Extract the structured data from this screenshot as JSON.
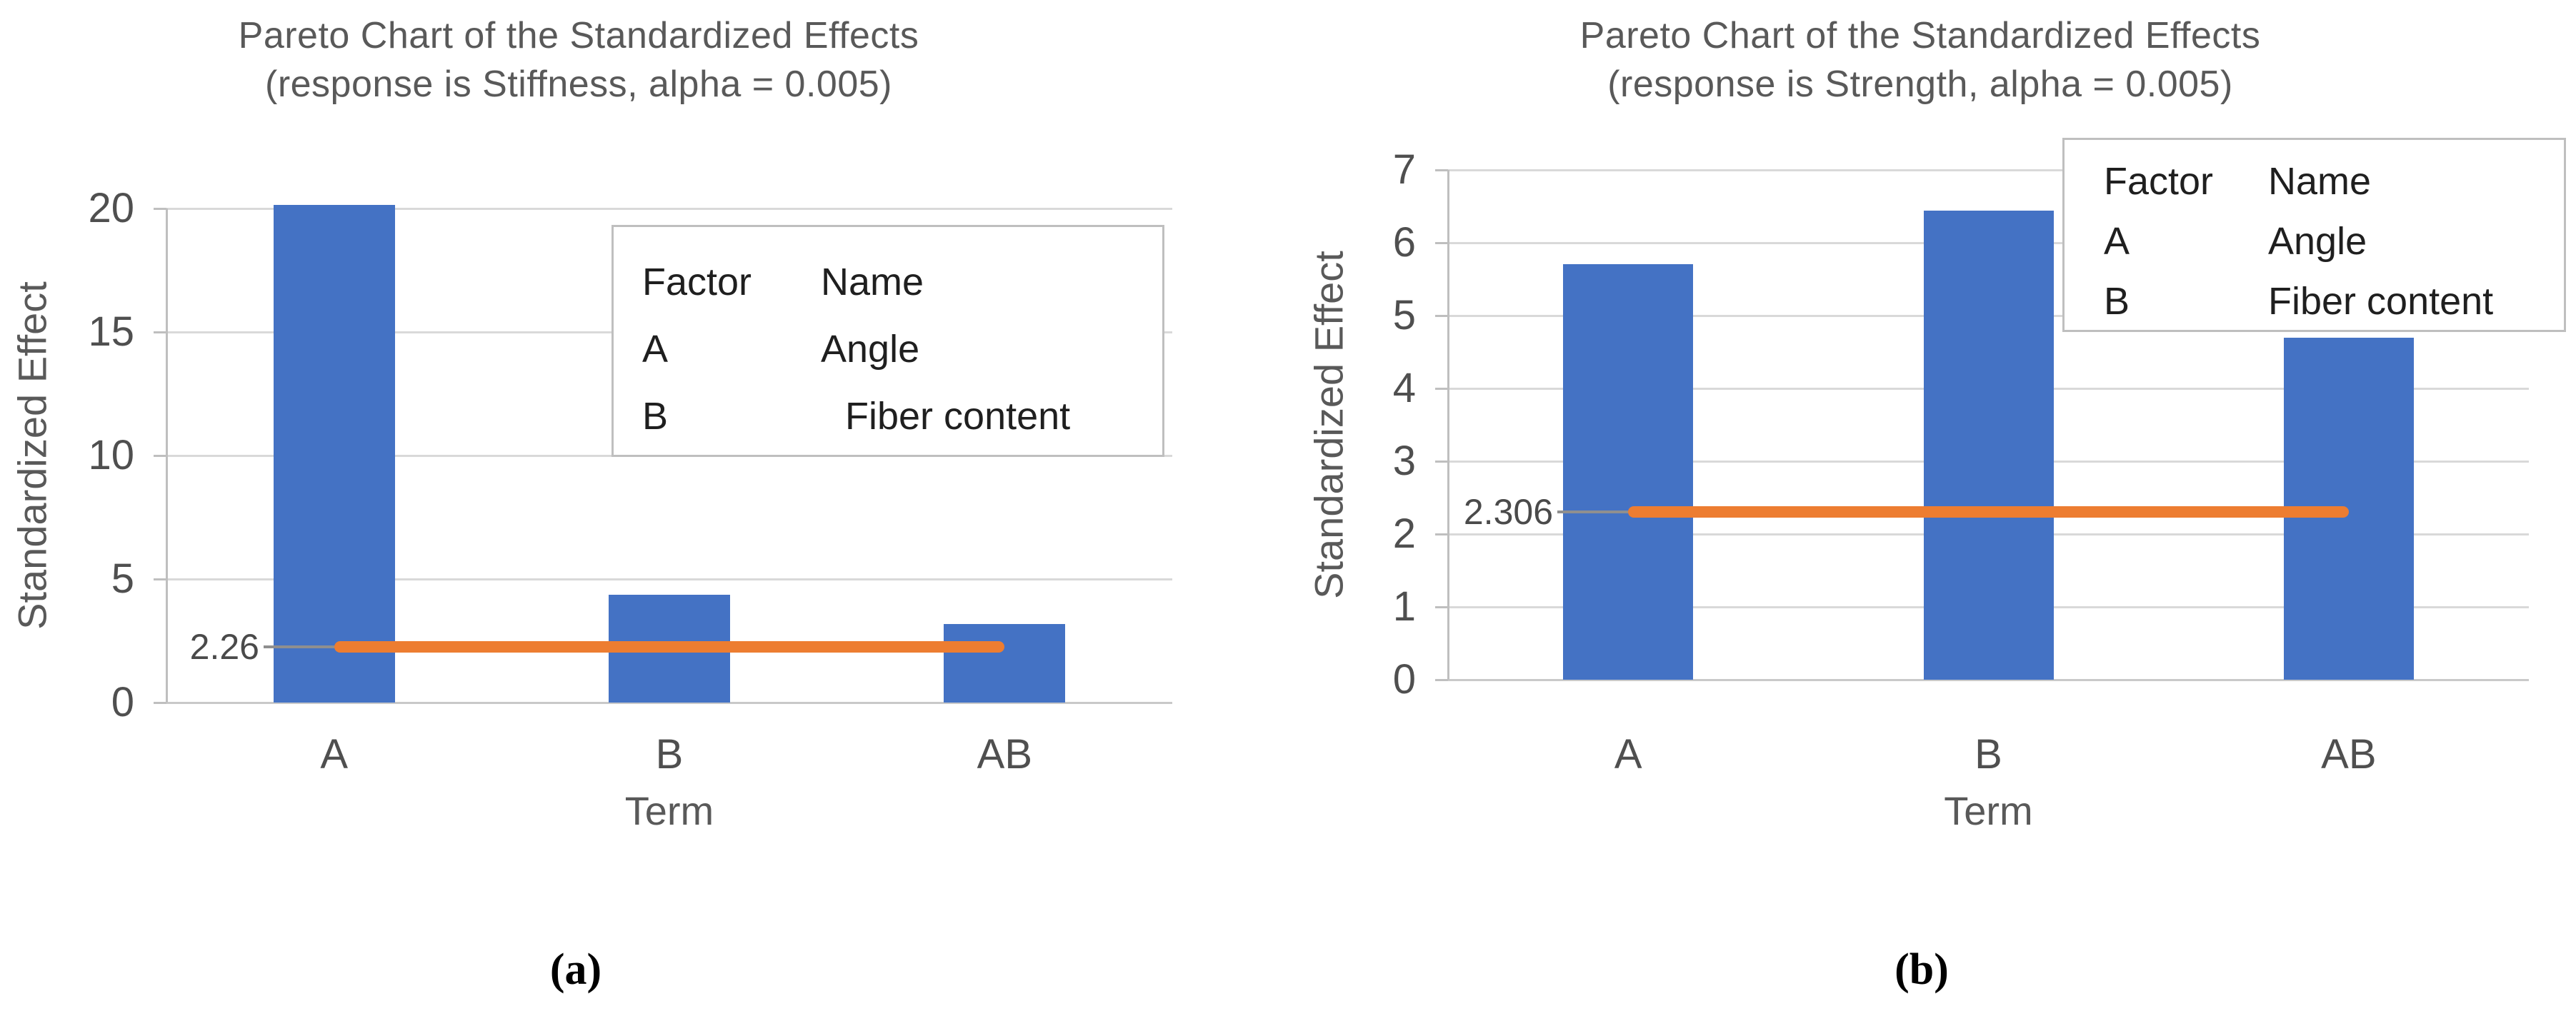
{
  "chart_data": [
    {
      "type": "bar",
      "title": "Pareto Chart of the Standardized Effects",
      "subtitle": "(response is Stiffness, alpha = 0.005)",
      "xlabel": "Term",
      "ylabel": "Standardized Effect",
      "categories": [
        "A",
        "B",
        "AB"
      ],
      "values": [
        20.15,
        4.35,
        3.17
      ],
      "ylim": [
        0,
        20
      ],
      "yticks": [
        0,
        5,
        10,
        15,
        20
      ],
      "reference_line": {
        "value": 2.26,
        "label": "2.26"
      },
      "bar_color": "#4472C4",
      "reference_color": "#ED7D31",
      "grid": true,
      "legend_position": "top-right",
      "legend": {
        "rows": [
          {
            "factor": "Factor",
            "name": "Name"
          },
          {
            "factor": "A",
            "name": "Angle"
          },
          {
            "factor": "B",
            "name": "Fiber content"
          }
        ]
      },
      "caption": "(a)"
    },
    {
      "type": "bar",
      "title": "Pareto Chart of the Standardized Effects",
      "subtitle": "(response is Strength, alpha = 0.005)",
      "xlabel": "Term",
      "ylabel": "Standardized Effect",
      "categories": [
        "A",
        "B",
        "AB"
      ],
      "values": [
        5.71,
        6.44,
        4.7
      ],
      "ylim": [
        0,
        7
      ],
      "yticks": [
        0,
        1,
        2,
        3,
        4,
        5,
        6,
        7
      ],
      "reference_line": {
        "value": 2.306,
        "label": "2.306"
      },
      "bar_color": "#4472C4",
      "reference_color": "#ED7D31",
      "grid": true,
      "legend_position": "top-right",
      "legend": {
        "rows": [
          {
            "factor": "Factor",
            "name": "Name"
          },
          {
            "factor": "A",
            "name": "Angle"
          },
          {
            "factor": "B",
            "name": "Fiber content"
          }
        ]
      },
      "caption": "(b)"
    }
  ]
}
